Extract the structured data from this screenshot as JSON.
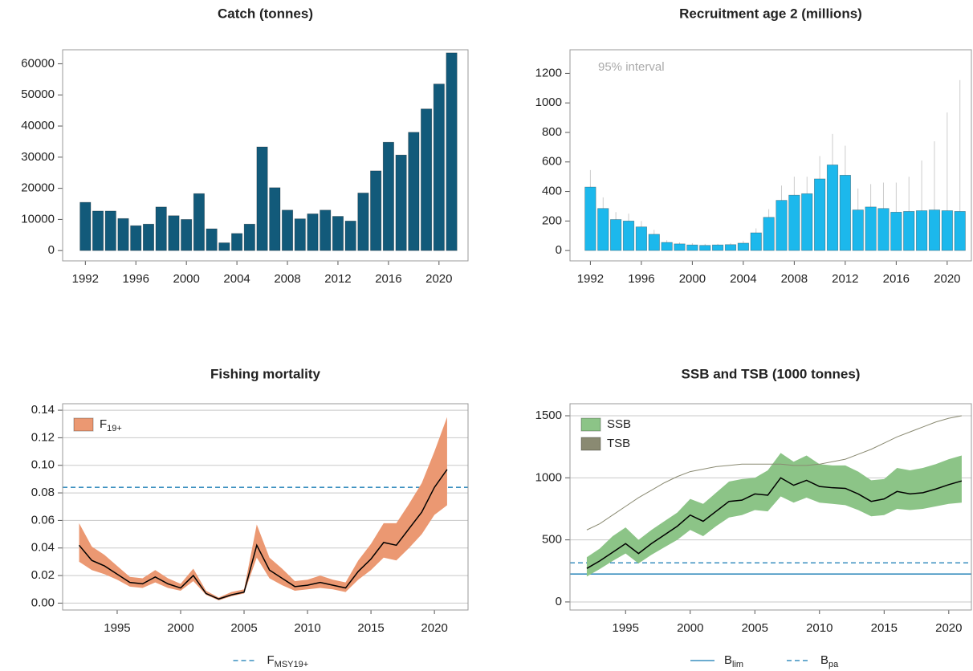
{
  "chart_data": [
    {
      "type": "bar",
      "title": "Catch (tonnes)",
      "x": [
        1992,
        1993,
        1994,
        1995,
        1996,
        1997,
        1998,
        1999,
        2000,
        2001,
        2002,
        2003,
        2004,
        2005,
        2006,
        2007,
        2008,
        2009,
        2010,
        2011,
        2012,
        2013,
        2014,
        2015,
        2016,
        2017,
        2018,
        2019,
        2020,
        2021
      ],
      "values": [
        15500,
        12700,
        12700,
        10300,
        8000,
        8500,
        14000,
        11200,
        10000,
        18300,
        7000,
        2500,
        5500,
        8500,
        33300,
        20200,
        13000,
        10200,
        11800,
        13000,
        11000,
        9500,
        18500,
        25600,
        34800,
        30700,
        38000,
        45500,
        53500,
        63500
      ],
      "color": "#125a7a",
      "xlim": [
        1990.2,
        2022.3
      ],
      "ylim": [
        -3300,
        64500
      ],
      "xticks": [
        1992,
        1996,
        2000,
        2004,
        2008,
        2012,
        2016,
        2020
      ],
      "yticks": [
        0,
        10000,
        20000,
        30000,
        40000,
        50000,
        60000
      ],
      "grid": false
    },
    {
      "type": "bar",
      "title": "Recruitment age 2 (millions)",
      "annotation": "95% interval",
      "x": [
        1992,
        1993,
        1994,
        1995,
        1996,
        1997,
        1998,
        1999,
        2000,
        2001,
        2002,
        2003,
        2004,
        2005,
        2006,
        2007,
        2008,
        2009,
        2010,
        2011,
        2012,
        2013,
        2014,
        2015,
        2016,
        2017,
        2018,
        2019,
        2020,
        2021
      ],
      "values": [
        430,
        285,
        210,
        200,
        160,
        110,
        55,
        45,
        38,
        35,
        38,
        40,
        50,
        120,
        225,
        340,
        375,
        385,
        485,
        580,
        510,
        275,
        295,
        285,
        260,
        265,
        270,
        275,
        270,
        265
      ],
      "upper": [
        545,
        360,
        260,
        250,
        200,
        140,
        70,
        55,
        50,
        45,
        45,
        50,
        65,
        150,
        280,
        440,
        500,
        500,
        640,
        790,
        710,
        420,
        450,
        460,
        460,
        500,
        610,
        740,
        935,
        1155
      ],
      "color": "#1cb8ec",
      "error_color": "#cccccc",
      "xlim": [
        1990.4,
        2021.9
      ],
      "ylim": [
        -70,
        1360
      ],
      "xticks": [
        1992,
        1996,
        2000,
        2004,
        2008,
        2012,
        2016,
        2020
      ],
      "yticks": [
        0,
        200,
        400,
        600,
        800,
        1000,
        1200
      ],
      "grid": false
    },
    {
      "type": "line",
      "title": "Fishing mortality",
      "x": [
        1992,
        1993,
        1994,
        1995,
        1996,
        1997,
        1998,
        1999,
        2000,
        2001,
        2002,
        2003,
        2004,
        2005,
        2006,
        2007,
        2008,
        2009,
        2010,
        2011,
        2012,
        2013,
        2014,
        2015,
        2016,
        2017,
        2018,
        2019,
        2020,
        2021
      ],
      "series": [
        {
          "name": "F",
          "subscript": "19+",
          "color": "#000000",
          "band_color": "#eb9872",
          "values": [
            0.042,
            0.031,
            0.027,
            0.021,
            0.015,
            0.014,
            0.019,
            0.014,
            0.011,
            0.02,
            0.007,
            0.003,
            0.006,
            0.008,
            0.042,
            0.024,
            0.018,
            0.012,
            0.013,
            0.015,
            0.013,
            0.011,
            0.023,
            0.032,
            0.044,
            0.042,
            0.054,
            0.066,
            0.084,
            0.097
          ],
          "lower": [
            0.03,
            0.024,
            0.021,
            0.017,
            0.012,
            0.011,
            0.015,
            0.011,
            0.009,
            0.016,
            0.006,
            0.002,
            0.005,
            0.007,
            0.033,
            0.018,
            0.013,
            0.009,
            0.01,
            0.011,
            0.01,
            0.008,
            0.017,
            0.024,
            0.033,
            0.031,
            0.04,
            0.05,
            0.064,
            0.071
          ],
          "upper": [
            0.058,
            0.041,
            0.035,
            0.027,
            0.019,
            0.018,
            0.024,
            0.018,
            0.014,
            0.025,
            0.009,
            0.004,
            0.008,
            0.01,
            0.057,
            0.033,
            0.025,
            0.016,
            0.017,
            0.02,
            0.017,
            0.015,
            0.031,
            0.043,
            0.058,
            0.058,
            0.072,
            0.087,
            0.11,
            0.135
          ]
        }
      ],
      "reference_lines": [
        {
          "label": "F",
          "subscript": "MSY19+",
          "value": 0.084,
          "color": "#3a8fbf",
          "dashed": true
        }
      ],
      "xlim": [
        1990.7,
        2022.65
      ],
      "ylim": [
        -0.005,
        0.1447
      ],
      "xticks": [
        1995,
        2000,
        2005,
        2010,
        2015,
        2020
      ],
      "yticks": [
        {
          "value": 0,
          "label": "0.00"
        },
        0.02,
        0.04,
        0.06,
        0.08,
        {
          "value": 0.1,
          "label": "0.10"
        },
        0.12,
        0.14
      ],
      "grid": true
    },
    {
      "type": "line",
      "title": "SSB and TSB (1000 tonnes)",
      "x": [
        1992,
        1993,
        1994,
        1995,
        1996,
        1997,
        1998,
        1999,
        2000,
        2001,
        2002,
        2003,
        2004,
        2005,
        2006,
        2007,
        2008,
        2009,
        2010,
        2011,
        2012,
        2013,
        2014,
        2015,
        2016,
        2017,
        2018,
        2019,
        2020,
        2021
      ],
      "series": [
        {
          "name": "SSB",
          "color": "#000000",
          "band_color": "#8cc487",
          "values": [
            270,
            330,
            400,
            470,
            390,
            470,
            540,
            610,
            700,
            650,
            730,
            810,
            820,
            870,
            860,
            1000,
            940,
            980,
            930,
            920,
            915,
            870,
            810,
            830,
            890,
            870,
            880,
            910,
            945,
            975
          ],
          "lower": [
            205,
            265,
            330,
            390,
            310,
            380,
            440,
            500,
            580,
            530,
            610,
            680,
            700,
            740,
            730,
            850,
            800,
            840,
            800,
            790,
            780,
            740,
            690,
            700,
            750,
            740,
            750,
            770,
            790,
            800
          ],
          "upper": [
            360,
            430,
            530,
            600,
            500,
            580,
            650,
            720,
            830,
            790,
            880,
            970,
            990,
            1000,
            1060,
            1200,
            1130,
            1180,
            1110,
            1100,
            1100,
            1050,
            980,
            990,
            1080,
            1060,
            1080,
            1110,
            1150,
            1180
          ]
        },
        {
          "name": "TSB",
          "color": "#8a8a72",
          "values": [
            580,
            630,
            700,
            770,
            840,
            900,
            960,
            1010,
            1050,
            1070,
            1090,
            1100,
            1110,
            1110,
            1110,
            1110,
            1100,
            1100,
            1110,
            1130,
            1150,
            1190,
            1230,
            1280,
            1330,
            1370,
            1410,
            1450,
            1480,
            1500
          ]
        }
      ],
      "reference_lines": [
        {
          "label": "B",
          "subscript": "lim",
          "value": 225,
          "color": "#3a8fbf",
          "dashed": false
        },
        {
          "label": "B",
          "subscript": "pa",
          "value": 315,
          "color": "#3a8fbf",
          "dashed": true
        }
      ],
      "xlim": [
        1990.7,
        2021.75
      ],
      "ylim": [
        -65,
        1597
      ],
      "xticks": [
        1995,
        2000,
        2005,
        2010,
        2015,
        2020
      ],
      "yticks": [
        0,
        500,
        1000,
        1500
      ],
      "grid": true
    }
  ]
}
